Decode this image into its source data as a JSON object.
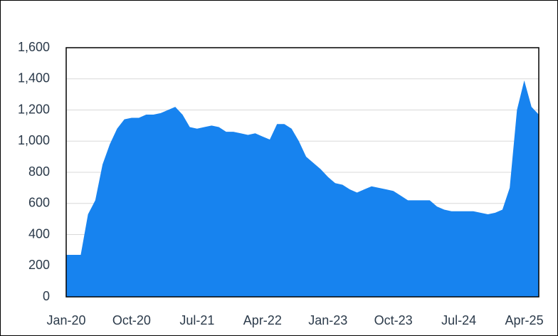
{
  "chart_data": {
    "type": "area",
    "color": "#1783ef",
    "grid": true,
    "categories": [
      "Jan-20",
      null,
      null,
      null,
      null,
      null,
      null,
      null,
      null,
      "Oct-20",
      null,
      null,
      null,
      null,
      null,
      null,
      null,
      null,
      "Jul-21",
      null,
      null,
      null,
      null,
      null,
      null,
      null,
      null,
      "Apr-22",
      null,
      null,
      null,
      null,
      null,
      null,
      null,
      null,
      "Jan-23",
      null,
      null,
      null,
      null,
      null,
      null,
      null,
      null,
      "Oct-23",
      null,
      null,
      null,
      null,
      null,
      null,
      null,
      null,
      "Jul-24",
      null,
      null,
      null,
      null,
      null,
      null,
      null,
      null,
      "Apr-25",
      null,
      null
    ],
    "values": [
      270,
      270,
      270,
      530,
      620,
      850,
      980,
      1080,
      1140,
      1150,
      1150,
      1170,
      1170,
      1180,
      1200,
      1220,
      1170,
      1090,
      1080,
      1090,
      1100,
      1090,
      1060,
      1060,
      1050,
      1040,
      1050,
      1030,
      1010,
      1110,
      1110,
      1080,
      1000,
      900,
      860,
      820,
      770,
      730,
      720,
      690,
      670,
      690,
      710,
      700,
      690,
      680,
      650,
      620,
      620,
      620,
      620,
      580,
      560,
      550,
      550,
      550,
      550,
      540,
      530,
      540,
      560,
      700,
      1200,
      1390,
      1220,
      1170
    ],
    "ylim": [
      0,
      1600
    ],
    "yticks": [
      0,
      200,
      400,
      600,
      800,
      {
        "value": 1000,
        "label": "1,000"
      },
      {
        "value": 1200,
        "label": "1,200"
      },
      {
        "value": 1400,
        "label": "1,400"
      },
      {
        "value": 1600,
        "label": "1,600"
      }
    ]
  }
}
